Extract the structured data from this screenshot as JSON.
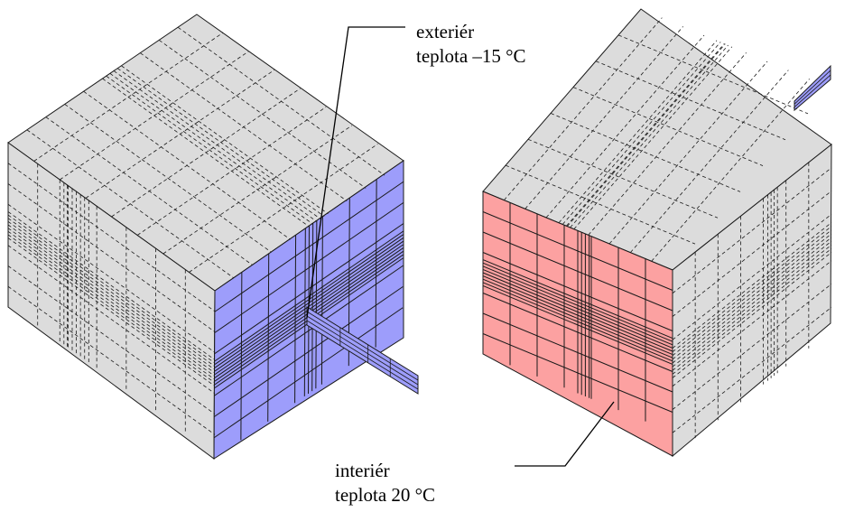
{
  "labels": {
    "exterior_line1": "exteriér",
    "exterior_line2": "teplota –15 °C",
    "interior_line1": "interiér",
    "interior_line2": "teplota 20 °C"
  },
  "colors": {
    "face_gray": "#dcdcdc",
    "exterior_face": "#9d9dfb",
    "interior_face": "#fca1a1",
    "line": "#1a1a1a"
  }
}
